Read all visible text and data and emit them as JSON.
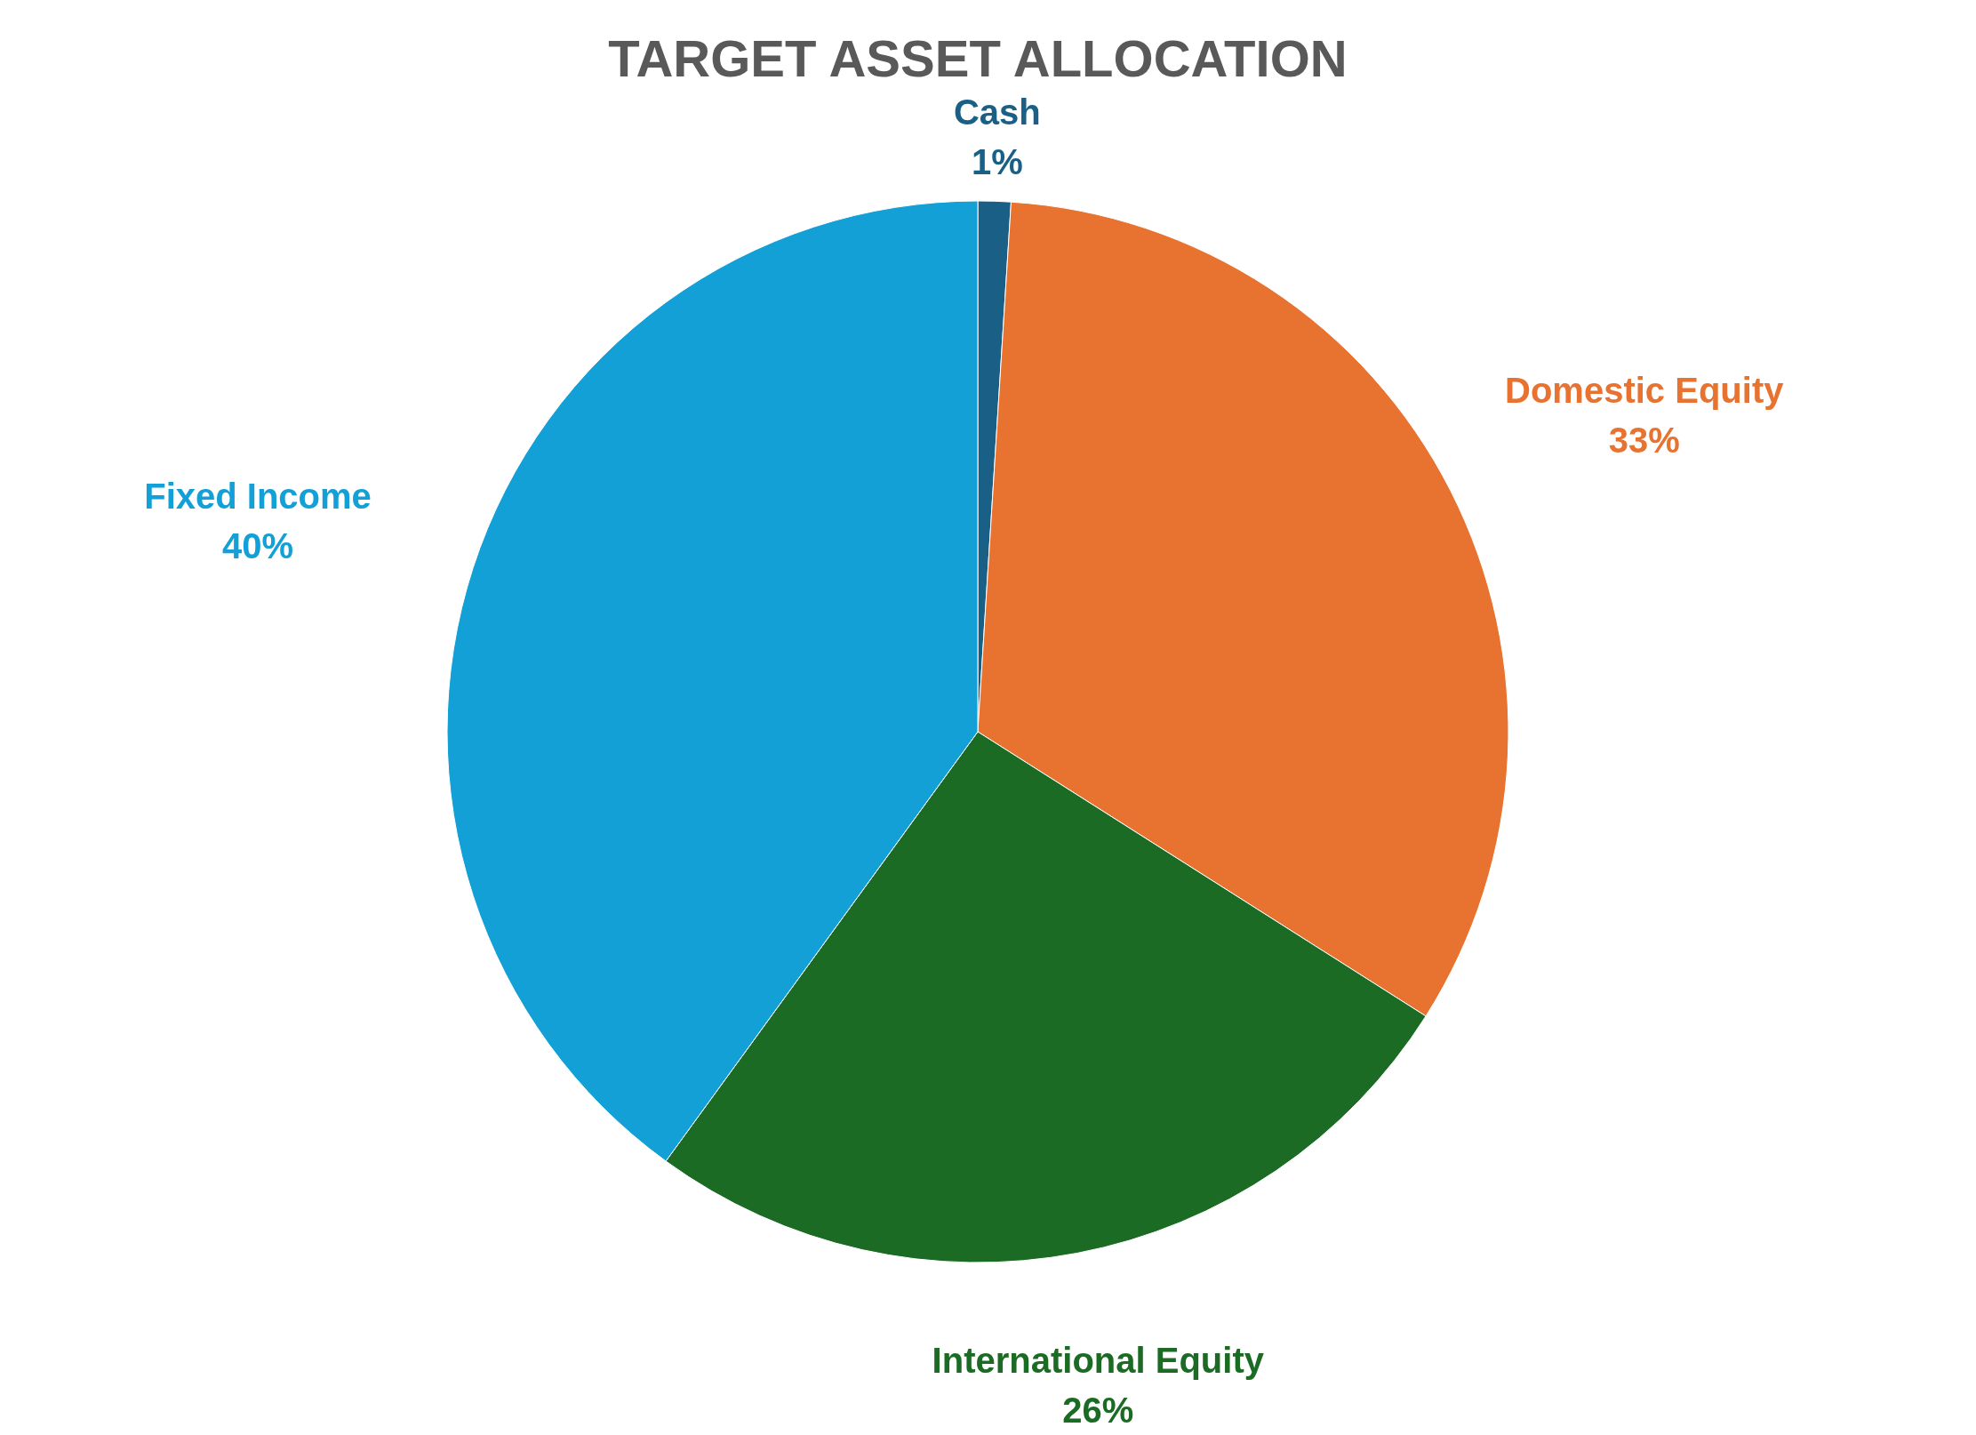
{
  "chart_data": {
    "type": "pie",
    "title": "TARGET ASSET ALLOCATION",
    "categories": [
      "Cash",
      "Domestic Equity",
      "International Equity",
      "Fixed Income"
    ],
    "values": [
      1,
      33,
      26,
      40
    ],
    "value_labels": [
      "1%",
      "33%",
      "26%",
      "40%"
    ],
    "colors": [
      "#1a5f86",
      "#e8722f",
      "#1b6b24",
      "#12a0d7"
    ],
    "legend": false
  }
}
